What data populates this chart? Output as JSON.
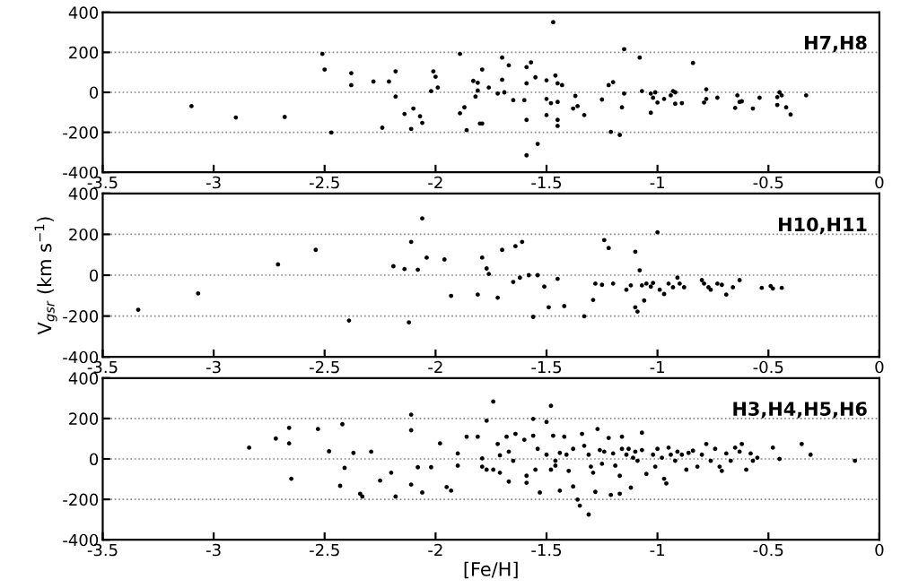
{
  "chart_data": [
    {
      "type": "scatter",
      "annotations": [
        "H7,H8"
      ],
      "xlim": [
        -3.5,
        0
      ],
      "ylim": [
        -400,
        400
      ],
      "xticks": [
        -3.5,
        -3,
        -2.5,
        -2,
        -1.5,
        -1,
        -0.5,
        0
      ],
      "yticks": [
        -400,
        -200,
        0,
        200,
        400
      ],
      "grid": "y",
      "marker": "circle",
      "series": [
        {
          "color": "#000000",
          "x": [
            -3.1,
            -2.9,
            -2.68,
            -2.47,
            -2.51,
            -2.5,
            -2.38,
            -2.38,
            -2.28,
            -2.21,
            -2.18,
            -2.18,
            -2.14,
            -2.1,
            -2.11,
            -2.24,
            -2.07,
            -2.06,
            -2.02,
            -2.01,
            -2.0,
            -1.99,
            -1.89,
            -1.89,
            -1.87,
            -1.86,
            -1.83,
            -1.82,
            -1.81,
            -1.81,
            -1.79,
            -1.8,
            -1.79,
            -1.76,
            -1.72,
            -1.7,
            -1.7,
            -1.69,
            -1.67,
            -1.65,
            -1.59,
            -1.59,
            -1.57,
            -1.6,
            -1.59,
            -1.59,
            -1.55,
            -1.54,
            -1.5,
            -1.5,
            -1.5,
            -1.48,
            -1.47,
            -1.46,
            -1.45,
            -1.45,
            -1.45,
            -1.45,
            -1.43,
            -1.38,
            -1.37,
            -1.36,
            -1.33,
            -1.25,
            -1.22,
            -1.2,
            -1.21,
            -1.17,
            -1.16,
            -1.15,
            -1.15,
            -1.08,
            -1.07,
            -1.03,
            -1.03,
            -1.02,
            -1.01,
            -1.0,
            -0.97,
            -0.94,
            -0.93,
            -0.92,
            -0.92,
            -0.89,
            -0.84,
            -0.79,
            -0.78,
            -0.78,
            -0.73,
            -0.65,
            -0.64,
            -0.63,
            -0.62,
            -0.57,
            -0.54,
            -0.46,
            -0.46,
            -0.45,
            -0.44,
            -0.42,
            -0.4,
            -0.33
          ],
          "values": [
            -69,
            -126,
            -123,
            -201,
            192,
            114,
            96,
            36,
            54,
            54,
            105,
            -21,
            -108,
            -81,
            -183,
            -177,
            -120,
            -153,
            6,
            105,
            78,
            24,
            192,
            -105,
            -75,
            -189,
            57,
            -21,
            48,
            9,
            114,
            -156,
            -156,
            24,
            -6,
            174,
            63,
            0,
            135,
            -39,
            45,
            126,
            150,
            -39,
            -138,
            -315,
            75,
            -258,
            60,
            -114,
            -33,
            -54,
            351,
            84,
            45,
            -48,
            -138,
            -168,
            36,
            -81,
            -18,
            -69,
            -114,
            -36,
            36,
            51,
            -198,
            -213,
            -75,
            216,
            -6,
            174,
            6,
            -6,
            -102,
            -27,
            0,
            -51,
            -33,
            -15,
            6,
            0,
            -57,
            -54,
            147,
            -51,
            15,
            -33,
            -27,
            -78,
            -15,
            -48,
            -45,
            -81,
            -27,
            -24,
            -63,
            0,
            -15,
            -75,
            -111,
            -15
          ]
        }
      ]
    },
    {
      "type": "scatter",
      "annotations": [
        "H10,H11"
      ],
      "ylabel": "V$_{gsr}$ (km s$^{−1}$)",
      "xlim": [
        -3.5,
        0
      ],
      "ylim": [
        -400,
        400
      ],
      "xticks": [
        -3.5,
        -3,
        -2.5,
        -2,
        -1.5,
        -1,
        -0.5,
        0
      ],
      "yticks": [
        -400,
        -200,
        0,
        200,
        400
      ],
      "grid": "y",
      "marker": "circle",
      "series": [
        {
          "color": "#000000",
          "x": [
            -3.34,
            -3.07,
            -2.71,
            -2.54,
            -2.39,
            -2.19,
            -2.14,
            -2.12,
            -2.11,
            -2.08,
            -2.06,
            -2.04,
            -1.96,
            -1.93,
            -1.81,
            -1.79,
            -1.77,
            -1.76,
            -1.72,
            -1.7,
            -1.65,
            -1.64,
            -1.61,
            -1.62,
            -1.58,
            -1.54,
            -1.56,
            -1.51,
            -1.49,
            -1.45,
            -1.42,
            -1.33,
            -1.29,
            -1.28,
            -1.25,
            -1.24,
            -1.22,
            -1.2,
            -1.14,
            -1.12,
            -1.1,
            -1.1,
            -1.09,
            -1.08,
            -1.07,
            -1.06,
            -1.05,
            -1.03,
            -1.02,
            -1.0,
            -0.99,
            -0.97,
            -0.95,
            -0.93,
            -0.91,
            -0.9,
            -0.88,
            -0.8,
            -0.79,
            -0.77,
            -0.76,
            -0.73,
            -0.71,
            -0.69,
            -0.66,
            -0.63,
            -0.53,
            -0.49,
            -0.48,
            -0.44
          ],
          "values": [
            -169,
            -89,
            53,
            124,
            -222,
            44,
            30,
            -231,
            163,
            27,
            278,
            86,
            77,
            -101,
            -95,
            86,
            33,
            6,
            -110,
            124,
            -33,
            142,
            163,
            -12,
            0,
            0,
            -204,
            -56,
            -157,
            -18,
            -151,
            -201,
            -121,
            -41,
            -47,
            172,
            133,
            -41,
            -71,
            -50,
            115,
            -157,
            -178,
            24,
            -50,
            -124,
            -41,
            -56,
            -38,
            210,
            -71,
            -92,
            -41,
            -59,
            -12,
            -41,
            -59,
            -24,
            -41,
            -59,
            -71,
            -41,
            -47,
            -95,
            -59,
            -24,
            -62,
            -53,
            -65,
            -62
          ]
        }
      ]
    },
    {
      "type": "scatter",
      "annotations": [
        "H3,H4,H5,H6"
      ],
      "xlabel": "[Fe/H]",
      "xlim": [
        -3.5,
        0
      ],
      "ylim": [
        -400,
        400
      ],
      "xticks": [
        -3.5,
        -3,
        -2.5,
        -2,
        -1.5,
        -1,
        -0.5,
        0
      ],
      "yticks": [
        -400,
        -200,
        0,
        200,
        400
      ],
      "grid": "y",
      "marker": "circle",
      "series": [
        {
          "color": "#000000",
          "x": [
            -2.84,
            -2.72,
            -2.66,
            -2.66,
            -2.65,
            -2.53,
            -2.48,
            -2.43,
            -2.42,
            -2.41,
            -2.37,
            -2.34,
            -2.33,
            -2.29,
            -2.25,
            -2.2,
            -2.18,
            -2.11,
            -2.11,
            -2.11,
            -2.08,
            -2.06,
            -2.02,
            -1.98,
            -1.95,
            -1.93,
            -1.9,
            -1.9,
            -1.86,
            -1.81,
            -1.79,
            -1.79,
            -1.77,
            -1.77,
            -1.74,
            -1.72,
            -1.71,
            -1.71,
            -1.68,
            -1.67,
            -1.67,
            -1.65,
            -1.64,
            -1.74,
            -1.6,
            -1.59,
            -1.59,
            -1.56,
            -1.56,
            -1.55,
            -1.54,
            -1.53,
            -1.5,
            -1.5,
            -1.48,
            -1.48,
            -1.47,
            -1.46,
            -1.46,
            -1.44,
            -1.44,
            -1.42,
            -1.41,
            -1.4,
            -1.38,
            -1.38,
            -1.36,
            -1.35,
            -1.34,
            -1.33,
            -1.31,
            -1.31,
            -1.3,
            -1.29,
            -1.28,
            -1.27,
            -1.26,
            -1.25,
            -1.24,
            -1.22,
            -1.21,
            -1.2,
            -1.19,
            -1.17,
            -1.17,
            -1.16,
            -1.16,
            -1.14,
            -1.13,
            -1.12,
            -1.11,
            -1.1,
            -1.09,
            -1.07,
            -1.07,
            -1.05,
            -1.02,
            -1.01,
            -1.0,
            -0.98,
            -0.97,
            -0.96,
            -0.95,
            -0.94,
            -0.92,
            -0.91,
            -0.89,
            -0.87,
            -0.86,
            -0.84,
            -0.82,
            -0.8,
            -0.78,
            -0.76,
            -0.74,
            -0.72,
            -0.71,
            -0.69,
            -0.67,
            -0.65,
            -0.63,
            -0.62,
            -0.6,
            -0.58,
            -0.57,
            -0.55,
            -0.48,
            -0.45,
            -0.35,
            -0.31,
            -0.11
          ],
          "values": [
            56,
            101,
            154,
            77,
            -98,
            148,
            38,
            -133,
            172,
            -44,
            30,
            -172,
            -186,
            36,
            -107,
            -68,
            -186,
            219,
            142,
            -127,
            -41,
            -166,
            -41,
            77,
            -139,
            -157,
            27,
            -33,
            110,
            110,
            3,
            -38,
            -53,
            189,
            -53,
            74,
            -68,
            18,
            110,
            36,
            -112,
            -9,
            124,
            284,
            95,
            -83,
            -118,
            198,
            115,
            -53,
            50,
            -166,
            183,
            21,
            263,
            -53,
            115,
            -9,
            -33,
            30,
            -157,
            110,
            21,
            -59,
            -136,
            50,
            -201,
            -231,
            124,
            65,
            21,
            -275,
            -38,
            -68,
            -163,
            148,
            44,
            -24,
            36,
            104,
            -178,
            27,
            -33,
            -172,
            -83,
            50,
            110,
            21,
            50,
            -142,
            6,
            36,
            -9,
            130,
            44,
            -74,
            21,
            -38,
            50,
            6,
            -98,
            -121,
            56,
            21,
            -9,
            36,
            21,
            -53,
            30,
            41,
            -38,
            21,
            74,
            -9,
            50,
            -38,
            -59,
            27,
            -9,
            56,
            36,
            74,
            -53,
            27,
            -9,
            6,
            56,
            0,
            74,
            21,
            -9
          ]
        }
      ]
    }
  ]
}
